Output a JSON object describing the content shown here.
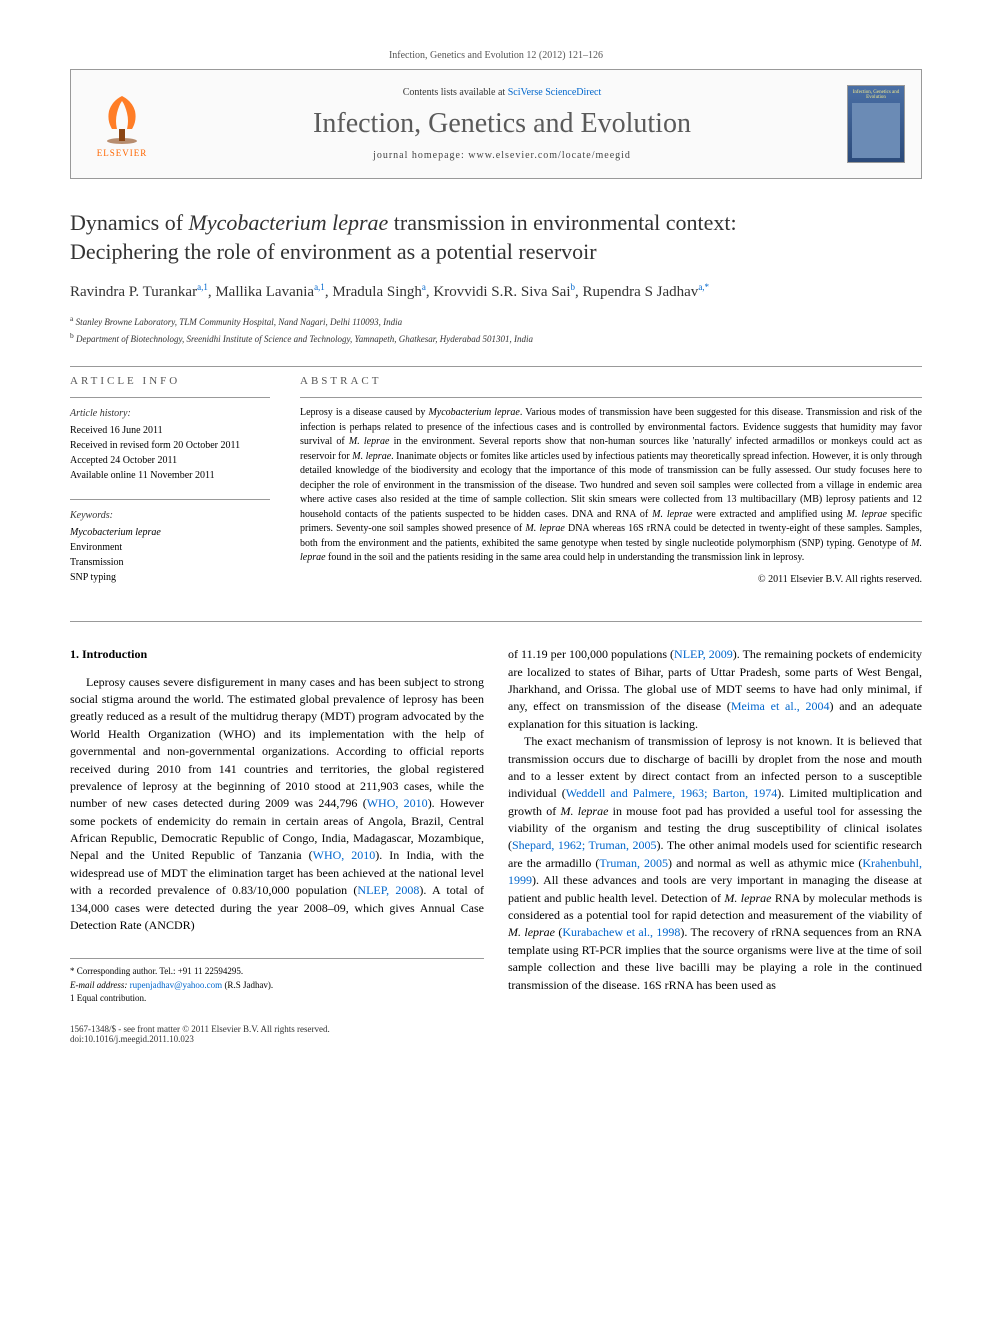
{
  "citation": "Infection, Genetics and Evolution 12 (2012) 121–126",
  "header": {
    "contents_prefix": "Contents lists available at ",
    "contents_link": "SciVerse ScienceDirect",
    "journal_name": "Infection, Genetics and Evolution",
    "homepage_prefix": "journal homepage: ",
    "homepage_url": "www.elsevier.com/locate/meegid",
    "elsevier_label": "ELSEVIER",
    "cover_title": "Infection, Genetics and Evolution"
  },
  "title_line1": "Dynamics of ",
  "title_italic": "Mycobacterium leprae",
  "title_line1b": " transmission in environmental context:",
  "title_line2": "Deciphering the role of environment as a potential reservoir",
  "authors_html": "Ravindra P. Turankar|a,1|, Mallika Lavania|a,1|, Mradula Singh|a|, Krovvidi S.R. Siva Sai|b|, Rupendra S Jadhav|a,*|",
  "affiliations": {
    "a": "Stanley Browne Laboratory, TLM Community Hospital, Nand Nagari, Delhi 110093, India",
    "b": "Department of Biotechnology, Sreenidhi Institute of Science and Technology, Yamnapeth, Ghatkesar, Hyderabad 501301, India"
  },
  "article_info": {
    "heading": "ARTICLE INFO",
    "history_label": "Article history:",
    "received": "Received 16 June 2011",
    "revised": "Received in revised form 20 October 2011",
    "accepted": "Accepted 24 October 2011",
    "online": "Available online 11 November 2011",
    "keywords_label": "Keywords:",
    "keywords": [
      "Mycobacterium leprae",
      "Environment",
      "Transmission",
      "SNP typing"
    ]
  },
  "abstract": {
    "heading": "ABSTRACT",
    "text": "Leprosy is a disease caused by Mycobacterium leprae. Various modes of transmission have been suggested for this disease. Transmission and risk of the infection is perhaps related to presence of the infectious cases and is controlled by environmental factors. Evidence suggests that humidity may favor survival of M. leprae in the environment. Several reports show that non-human sources like 'naturally' infected armadillos or monkeys could act as reservoir for M. leprae. Inanimate objects or fomites like articles used by infectious patients may theoretically spread infection. However, it is only through detailed knowledge of the biodiversity and ecology that the importance of this mode of transmission can be fully assessed. Our study focuses here to decipher the role of environment in the transmission of the disease. Two hundred and seven soil samples were collected from a village in endemic area where active cases also resided at the time of sample collection. Slit skin smears were collected from 13 multibacillary (MB) leprosy patients and 12 household contacts of the patients suspected to be hidden cases. DNA and RNA of M. leprae were extracted and amplified using M. leprae specific primers. Seventy-one soil samples showed presence of M. leprae DNA whereas 16S rRNA could be detected in twenty-eight of these samples. Samples, both from the environment and the patients, exhibited the same genotype when tested by single nucleotide polymorphism (SNP) typing. Genotype of M. leprae found in the soil and the patients residing in the same area could help in understanding the transmission link in leprosy.",
    "copyright": "© 2011 Elsevier B.V. All rights reserved."
  },
  "body": {
    "section_heading": "1. Introduction",
    "col1": "Leprosy causes severe disfigurement in many cases and has been subject to strong social stigma around the world. The estimated global prevalence of leprosy has been greatly reduced as a result of the multidrug therapy (MDT) program advocated by the World Health Organization (WHO) and its implementation with the help of governmental and non-governmental organizations. According to official reports received during 2010 from 141 countries and territories, the global registered prevalence of leprosy at the beginning of 2010 stood at 211,903 cases, while the number of new cases detected during 2009 was 244,796 (|WHO, 2010|). However some pockets of endemicity do remain in certain areas of Angola, Brazil, Central African Republic, Democratic Republic of Congo, India, Madagascar, Mozambique, Nepal and the United Republic of Tanzania (|WHO, 2010|). In India, with the widespread use of MDT the elimination target has been achieved at the national level with a recorded prevalence of 0.83/10,000 population (|NLEP, 2008|). A total of 134,000 cases were detected during the year 2008–09, which gives Annual Case Detection Rate (ANCDR)",
    "col2a": "of 11.19 per 100,000 populations (|NLEP, 2009|). The remaining pockets of endemicity are localized to states of Bihar, parts of Uttar Pradesh, some parts of West Bengal, Jharkhand, and Orissa. The global use of MDT seems to have had only minimal, if any, effect on transmission of the disease (|Meima et al., 2004|) and an adequate explanation for this situation is lacking.",
    "col2b": "The exact mechanism of transmission of leprosy is not known. It is believed that transmission occurs due to discharge of bacilli by droplet from the nose and mouth and to a lesser extent by direct contact from an infected person to a susceptible individual (|Weddell and Palmere, 1963; Barton, 1974|). Limited multiplication and growth of M. leprae in mouse foot pad has provided a useful tool for assessing the viability of the organism and testing the drug susceptibility of clinical isolates (|Shepard, 1962; Truman, 2005|). The other animal models used for scientific research are the armadillo (|Truman, 2005|) and normal as well as athymic mice (|Krahenbuhl, 1999|). All these advances and tools are very important in managing the disease at patient and public health level. Detection of M. leprae RNA by molecular methods is considered as a potential tool for rapid detection and measurement of the viability of M. leprae (|Kurabachew et al., 1998|). The recovery of rRNA sequences from an RNA template using RT-PCR implies that the source organisms were live at the time of soil sample collection and these live bacilli may be playing a role in the continued transmission of the disease. 16S rRNA has been used as"
  },
  "footnotes": {
    "corr": "* Corresponding author. Tel.: +91 11 22594295.",
    "email_label": "E-mail address:",
    "email": "rupenjadhav@yahoo.com",
    "email_name": "(R.S Jadhav).",
    "equal": "1 Equal contribution."
  },
  "footer": {
    "left1": "1567-1348/$ - see front matter © 2011 Elsevier B.V. All rights reserved.",
    "left2": "doi:10.1016/j.meegid.2011.10.023"
  },
  "colors": {
    "link": "#0066cc",
    "elsevier_orange": "#ff6600",
    "border": "#999999",
    "journal_title": "#5a5a5a"
  }
}
